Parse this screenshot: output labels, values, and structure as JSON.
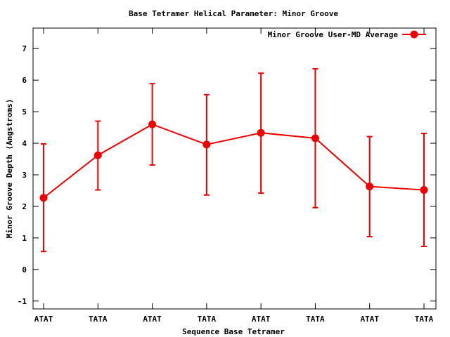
{
  "chart_data": {
    "type": "line",
    "title": "Base Tetramer Helical Parameter: Minor Groove",
    "xlabel": "Sequence Base Tetramer",
    "ylabel": "Minor Groove Depth (Angstroms)",
    "categories": [
      "ATAT",
      "TATA",
      "ATAT",
      "TATA",
      "ATAT",
      "TATA",
      "ATAT",
      "TATA"
    ],
    "ylim": [
      -1.25,
      7.65
    ],
    "yticks": [
      -1,
      0,
      1,
      2,
      3,
      4,
      5,
      6,
      7
    ],
    "legend_position": "top-right",
    "grid": false,
    "series": [
      {
        "name": "Minor Groove User-MD Average",
        "color": "#ee0000",
        "marker": "circle",
        "values": [
          2.27,
          3.62,
          4.6,
          3.96,
          4.33,
          4.16,
          2.63,
          2.52
        ],
        "error_low": [
          0.57,
          2.52,
          3.31,
          2.36,
          2.42,
          1.96,
          1.04,
          0.73
        ],
        "error_high": [
          3.98,
          4.7,
          5.89,
          5.54,
          6.22,
          6.36,
          4.21,
          4.31
        ]
      }
    ]
  }
}
